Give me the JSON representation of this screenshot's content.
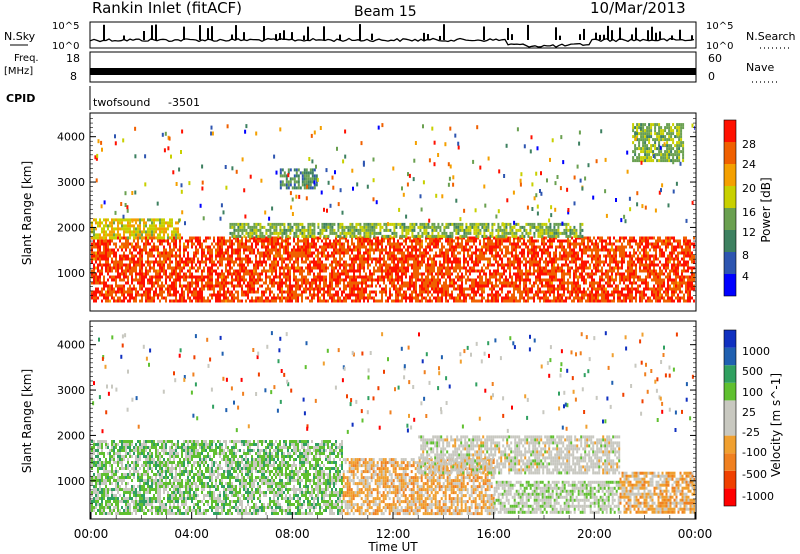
{
  "header": {
    "station": "Rankin Inlet (fitACF)",
    "beam": "Beam 15",
    "date": "10/Mar/2013"
  },
  "noise_panel": {
    "left_label": "N.Sky",
    "right_label": "N.Search",
    "left_ticks": [
      "10^5",
      "10^0"
    ],
    "right_ticks": [
      "10^5",
      "10^0"
    ]
  },
  "freq_panel": {
    "left_label_1": "Freq.",
    "left_label_2": "[MHz]",
    "right_label": "Nave",
    "left_ticks": [
      "18",
      "8"
    ],
    "right_ticks": [
      "60",
      "0"
    ]
  },
  "cpid_panel": {
    "label": "CPID",
    "program": "twofsound",
    "cpid_value": "-3501"
  },
  "chart_data": [
    {
      "type": "heatmap",
      "title": "",
      "ylabel": "Slant Range [km]",
      "xlabel": "",
      "yticks": [
        "1000",
        "2000",
        "3000",
        "4000"
      ],
      "ylim": [
        180,
        4500
      ],
      "xlim": [
        0,
        24
      ],
      "colorbar_label": "Power [dB]",
      "colorbar_ticks": [
        "28",
        "24",
        "20",
        "16",
        "12",
        "8",
        "4"
      ],
      "colorbar_colors": [
        "#0000ff",
        "#2e55b0",
        "#3d8060",
        "#6aa050",
        "#c8d000",
        "#f4a000",
        "#f06000",
        "#ff1000"
      ],
      "colorbar_range": [
        0,
        30
      ],
      "backscatter_bands": [
        {
          "t_start": 0.0,
          "t_end": 24.0,
          "range_low": 400,
          "range_high": 1800,
          "value": 26
        },
        {
          "t_start": 5.5,
          "t_end": 19.5,
          "range_low": 1800,
          "range_high": 2100,
          "value": 14
        },
        {
          "t_start": 0.0,
          "t_end": 3.5,
          "range_low": 1800,
          "range_high": 2200,
          "value": 18
        },
        {
          "t_start": 7.5,
          "t_end": 9.0,
          "range_low": 2900,
          "range_high": 3300,
          "value": 10
        },
        {
          "t_start": 21.5,
          "t_end": 23.5,
          "range_low": 3500,
          "range_high": 4300,
          "value": 14
        }
      ]
    },
    {
      "type": "heatmap",
      "title": "",
      "ylabel": "Slant Range [km]",
      "xlabel": "Time UT",
      "yticks": [
        "1000",
        "2000",
        "3000",
        "4000"
      ],
      "ylim": [
        180,
        4500
      ],
      "xlim": [
        0,
        24
      ],
      "xticks": [
        "00:00",
        "04:00",
        "08:00",
        "12:00",
        "16:00",
        "20:00",
        "00:00"
      ],
      "colorbar_label": "Velocity [m s^-1]",
      "colorbar_ticks": [
        "1000",
        "500",
        "100",
        "25",
        "-25",
        "-100",
        "-500",
        "-1000"
      ],
      "colorbar_colors": [
        "#ff0000",
        "#f04000",
        "#f08020",
        "#f0a030",
        "#c8c8c0",
        "#c8c8c0",
        "#60c030",
        "#30a060",
        "#2060b0",
        "#1030c0"
      ],
      "colorbar_range": [
        -1200,
        1200
      ],
      "backscatter_bands": [
        {
          "t_start": 0.0,
          "t_end": 10.0,
          "range_low": 300,
          "range_high": 1900,
          "value": 300
        },
        {
          "t_start": 10.0,
          "t_end": 16.0,
          "range_low": 300,
          "range_high": 1500,
          "value": -300
        },
        {
          "t_start": 13.0,
          "t_end": 21.0,
          "range_low": 1200,
          "range_high": 2000,
          "value": 0
        },
        {
          "t_start": 16.0,
          "t_end": 21.0,
          "range_low": 300,
          "range_high": 1000,
          "value": 150
        },
        {
          "t_start": 21.0,
          "t_end": 24.0,
          "range_low": 300,
          "range_high": 1200,
          "value": -300
        }
      ]
    }
  ]
}
